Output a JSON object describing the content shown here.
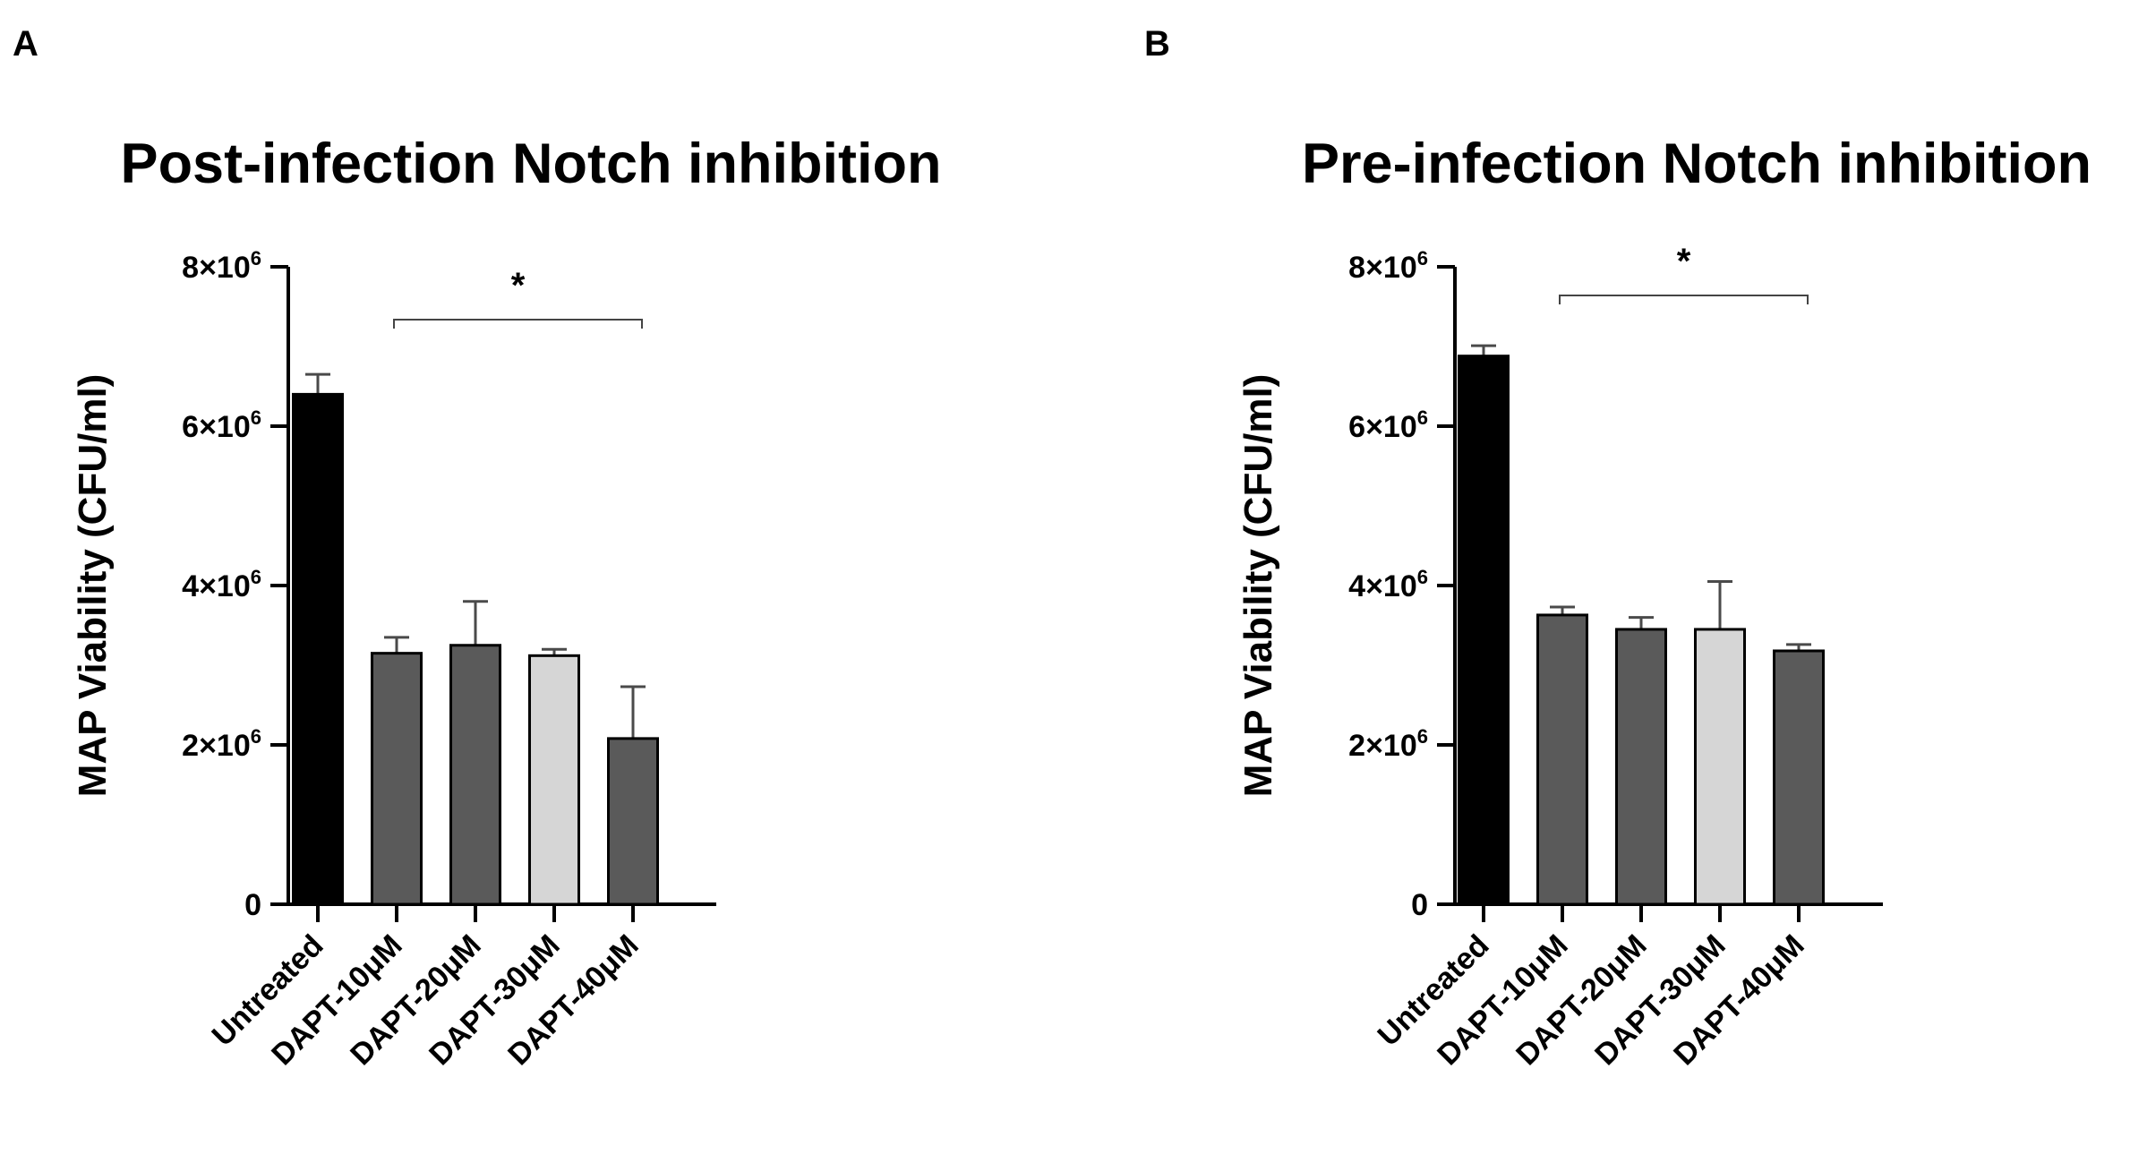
{
  "chart_data": [
    {
      "panel": "A",
      "type": "bar",
      "title": "Post-infection Notch inhibition",
      "ylabel": "MAP Viability (CFU/ml)",
      "xlabel": "",
      "ylim": [
        0,
        8000000
      ],
      "yticks": [
        0,
        2000000,
        4000000,
        6000000,
        8000000
      ],
      "ytick_labels": [
        {
          "base": "0",
          "exp": ""
        },
        {
          "base": "2×10",
          "exp": "6"
        },
        {
          "base": "4×10",
          "exp": "6"
        },
        {
          "base": "6×10",
          "exp": "6"
        },
        {
          "base": "8×10",
          "exp": "6"
        }
      ],
      "categories": [
        "Untreated",
        "DAPT-10μM",
        "DAPT-20μM",
        "DAPT-30μM",
        "DAPT-40μM"
      ],
      "values": [
        6400000,
        3150000,
        3250000,
        3120000,
        2080000
      ],
      "errors": [
        250000,
        200000,
        550000,
        80000,
        650000
      ],
      "bar_colors": [
        "#000000",
        "#5a5a5a",
        "#5a5a5a",
        "#d6d6d6",
        "#5a5a5a"
      ],
      "significance": {
        "from": 1,
        "to": 4,
        "label": "*"
      }
    },
    {
      "panel": "B",
      "type": "bar",
      "title": "Pre-infection Notch inhibition",
      "ylabel": "MAP Viability (CFU/ml)",
      "xlabel": "",
      "ylim": [
        0,
        8000000
      ],
      "yticks": [
        0,
        2000000,
        4000000,
        6000000,
        8000000
      ],
      "ytick_labels": [
        {
          "base": "0",
          "exp": ""
        },
        {
          "base": "2×10",
          "exp": "6"
        },
        {
          "base": "4×10",
          "exp": "6"
        },
        {
          "base": "6×10",
          "exp": "6"
        },
        {
          "base": "8×10",
          "exp": "6"
        }
      ],
      "categories": [
        "Untreated",
        "DAPT-10μM",
        "DAPT-20μM",
        "DAPT-30μM",
        "DAPT-40μM"
      ],
      "values": [
        6880000,
        3630000,
        3450000,
        3450000,
        3180000
      ],
      "errors": [
        130000,
        100000,
        150000,
        600000,
        80000
      ],
      "bar_colors": [
        "#000000",
        "#5a5a5a",
        "#5a5a5a",
        "#d6d6d6",
        "#5a5a5a"
      ],
      "significance": {
        "from": 1,
        "to": 4,
        "label": "*"
      }
    }
  ]
}
